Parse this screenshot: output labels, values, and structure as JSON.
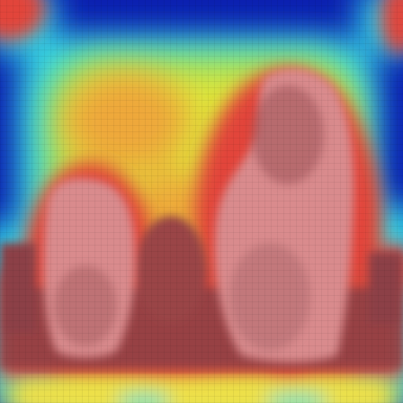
{
  "image": {
    "description_free": true,
    "colormap": [
      "#0b1fb0",
      "#1f6fe0",
      "#2fd0e8",
      "#7ee07a",
      "#d9e33a",
      "#f2b12a",
      "#e8503a",
      "#b85a5a",
      "#d98a8a"
    ],
    "palette": {
      "background_blue": "#0b1fb0",
      "cyan": "#35d8e6",
      "green": "#8fe06a",
      "yellow": "#dfe53a",
      "orange": "#eea83a",
      "red": "#e2453a",
      "dark_red": "#8c3f46",
      "pink": "#d98b8d"
    }
  }
}
